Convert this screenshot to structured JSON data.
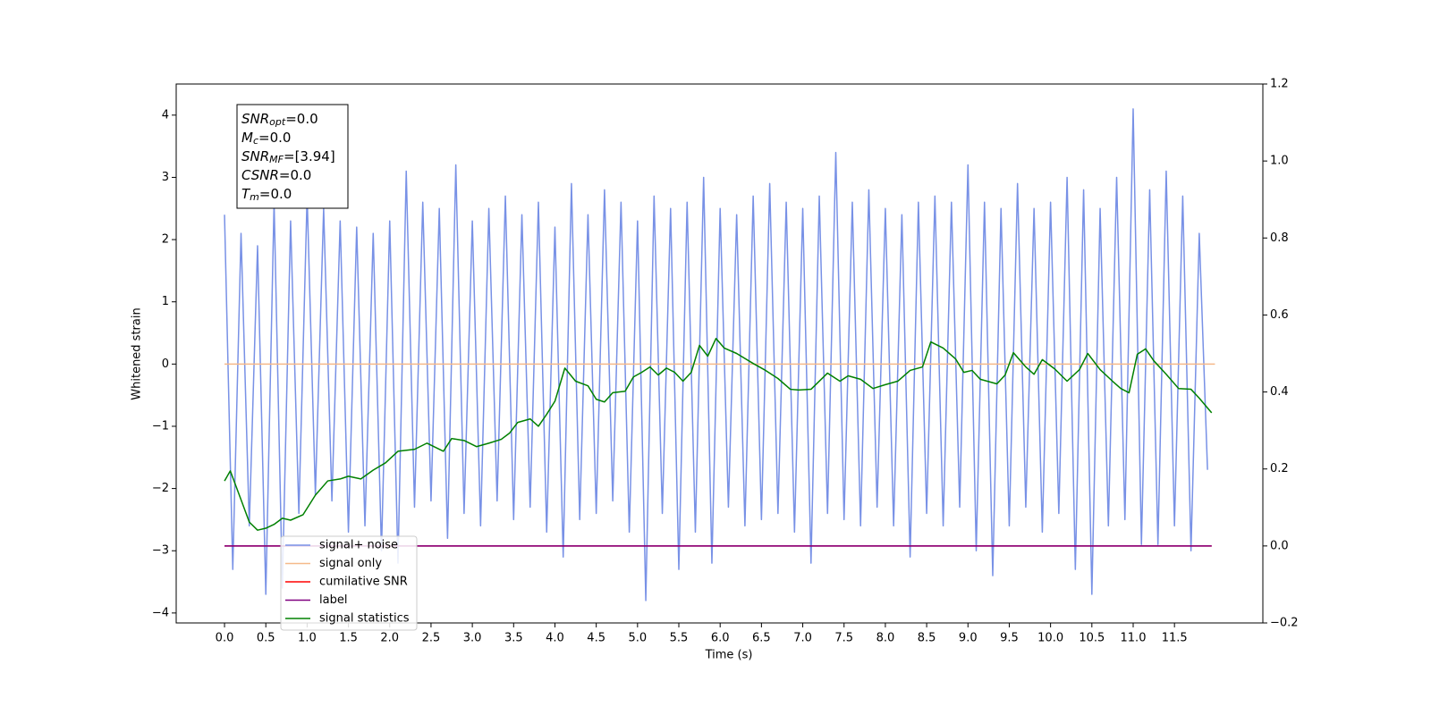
{
  "chart_data": {
    "type": "line",
    "xlabel": "Time (s)",
    "ylabel": "Whitened strain",
    "xlim": [
      -0.585,
      12.57
    ],
    "ylim": [
      -4.16,
      4.5
    ],
    "y2lim": [
      -0.2,
      1.2
    ],
    "xticks": [
      {
        "value": 0,
        "label": "0.0"
      },
      0.5,
      {
        "value": 1,
        "label": "1.0"
      },
      1.5,
      {
        "value": 2,
        "label": "2.0"
      },
      2.5,
      {
        "value": 3,
        "label": "3.0"
      },
      3.5,
      {
        "value": 4,
        "label": "4.0"
      },
      4.5,
      {
        "value": 5,
        "label": "5.0"
      },
      5.5,
      {
        "value": 6,
        "label": "6.0"
      },
      6.5,
      {
        "value": 7,
        "label": "7.0"
      },
      7.5,
      {
        "value": 8,
        "label": "8.0"
      },
      8.5,
      {
        "value": 9,
        "label": "9.0"
      },
      9.5,
      {
        "value": 10,
        "label": "10.0"
      },
      10.5,
      {
        "value": 11,
        "label": "11.0"
      },
      11.5
    ],
    "yticks": [
      {
        "value": -4,
        "label": "−4"
      },
      {
        "value": -3,
        "label": "−3"
      },
      {
        "value": -2,
        "label": "−2"
      },
      {
        "value": -1,
        "label": "−1"
      },
      0,
      1,
      2,
      3,
      4
    ],
    "y2ticks": [
      {
        "value": -0.2,
        "label": "−0.2"
      },
      {
        "value": 0,
        "label": "0.0"
      },
      0.2,
      0.4,
      0.6,
      0.8,
      {
        "value": 1,
        "label": "1.0"
      },
      1.2
    ],
    "annotation": [
      {
        "base": "SNR",
        "sub": "opt",
        "text": "=0.0"
      },
      {
        "base": "M",
        "sub": "c",
        "text": "=0.0"
      },
      {
        "base": "SNR",
        "sub": "MF",
        "text": "=[3.94]"
      },
      {
        "base": "CSNR",
        "text": "=0.0"
      },
      {
        "base": "T",
        "sub": "m",
        "text": "=0.0"
      }
    ],
    "series": [
      {
        "name": "signal+ noise",
        "color": "#7891e6",
        "axis": "y",
        "x": [
          0.0,
          0.1,
          0.2,
          0.3,
          0.4,
          0.5,
          0.6,
          0.7,
          0.8,
          0.9,
          1.0,
          1.1,
          1.2,
          1.3,
          1.4,
          1.5,
          1.6,
          1.7,
          1.8,
          1.9,
          2.0,
          2.1,
          2.2,
          2.3,
          2.4,
          2.5,
          2.6,
          2.7,
          2.8,
          2.9,
          3.0,
          3.1,
          3.2,
          3.3,
          3.4,
          3.5,
          3.6,
          3.7,
          3.8,
          3.9,
          4.0,
          4.1,
          4.2,
          4.3,
          4.4,
          4.5,
          4.6,
          4.7,
          4.8,
          4.9,
          5.0,
          5.1,
          5.2,
          5.3,
          5.4,
          5.5,
          5.6,
          5.7,
          5.8,
          5.9,
          6.0,
          6.1,
          6.2,
          6.3,
          6.4,
          6.5,
          6.6,
          6.7,
          6.8,
          6.9,
          7.0,
          7.1,
          7.2,
          7.3,
          7.4,
          7.5,
          7.6,
          7.7,
          7.8,
          7.9,
          8.0,
          8.1,
          8.2,
          8.3,
          8.4,
          8.5,
          8.6,
          8.7,
          8.8,
          8.9,
          9.0,
          9.1,
          9.2,
          9.3,
          9.4,
          9.5,
          9.6,
          9.7,
          9.8,
          9.9,
          10.0,
          10.1,
          10.2,
          10.3,
          10.4,
          10.5,
          10.6,
          10.7,
          10.8,
          10.9,
          11.0,
          11.1,
          11.2,
          11.3,
          11.4,
          11.5,
          11.6,
          11.7,
          11.8,
          11.9
        ],
        "values": [
          2.4,
          -3.3,
          2.1,
          -2.6,
          1.9,
          -3.7,
          2.6,
          -3.6,
          2.3,
          -2.4,
          2.7,
          -2.1,
          2.5,
          -2.2,
          2.3,
          -2.7,
          2.2,
          -2.6,
          2.1,
          -3.0,
          2.3,
          -3.2,
          3.1,
          -2.3,
          2.6,
          -2.2,
          2.5,
          -2.8,
          3.2,
          -2.4,
          2.3,
          -2.6,
          2.5,
          -2.2,
          2.7,
          -2.5,
          2.4,
          -2.3,
          2.6,
          -2.7,
          2.2,
          -3.1,
          2.9,
          -2.5,
          2.4,
          -2.4,
          2.8,
          -2.2,
          2.6,
          -2.7,
          2.3,
          -3.8,
          2.7,
          -2.4,
          2.5,
          -3.3,
          2.6,
          -2.7,
          3.0,
          -3.2,
          2.5,
          -2.3,
          2.4,
          -2.6,
          2.7,
          -2.5,
          2.9,
          -2.4,
          2.6,
          -2.7,
          2.5,
          -3.2,
          2.7,
          -2.4,
          3.4,
          -2.5,
          2.6,
          -2.6,
          2.8,
          -2.3,
          2.5,
          -2.6,
          2.4,
          -3.1,
          2.6,
          -2.4,
          2.7,
          -2.6,
          2.6,
          -2.3,
          3.2,
          -3.0,
          2.6,
          -3.4,
          2.5,
          -2.6,
          2.9,
          -2.3,
          2.5,
          -2.7,
          2.6,
          -2.4,
          3.0,
          -3.3,
          2.8,
          -3.7,
          2.5,
          -2.6,
          3.0,
          -2.5,
          4.1,
          -2.9,
          2.8,
          -2.9,
          3.1,
          -2.6,
          2.7,
          -3.0,
          2.1,
          -1.7
        ]
      },
      {
        "name": "signal only",
        "color": "#f5b98a",
        "axis": "y",
        "x": [
          0,
          11.99
        ],
        "values": [
          0,
          0
        ]
      },
      {
        "name": "cumilative SNR",
        "color": "#ff0000",
        "axis": "y2",
        "x": [
          0,
          11.95
        ],
        "values": [
          0,
          0
        ]
      },
      {
        "name": "label",
        "color": "#800080",
        "axis": "y2",
        "x": [
          0,
          11.95
        ],
        "values": [
          0,
          0
        ]
      },
      {
        "name": "signal statistics",
        "color": "#008000",
        "axis": "y2",
        "x": [
          0.0,
          0.07,
          0.2,
          0.3,
          0.4,
          0.5,
          0.6,
          0.7,
          0.8,
          0.95,
          1.1,
          1.25,
          1.4,
          1.5,
          1.65,
          1.8,
          1.95,
          2.1,
          2.3,
          2.45,
          2.65,
          2.75,
          2.9,
          3.05,
          3.2,
          3.35,
          3.45,
          3.55,
          3.7,
          3.8,
          3.9,
          4.0,
          4.12,
          4.25,
          4.4,
          4.5,
          4.6,
          4.7,
          4.85,
          4.95,
          5.05,
          5.15,
          5.25,
          5.35,
          5.45,
          5.55,
          5.65,
          5.75,
          5.85,
          5.95,
          6.05,
          6.2,
          6.4,
          6.55,
          6.7,
          6.85,
          6.95,
          7.1,
          7.3,
          7.45,
          7.55,
          7.7,
          7.85,
          8.0,
          8.15,
          8.3,
          8.45,
          8.55,
          8.7,
          8.85,
          8.95,
          9.05,
          9.15,
          9.35,
          9.45,
          9.55,
          9.7,
          9.8,
          9.9,
          10.05,
          10.2,
          10.35,
          10.45,
          10.6,
          10.75,
          10.85,
          10.95,
          11.05,
          11.15,
          11.25,
          11.4,
          11.55,
          11.7,
          11.8,
          11.95
        ],
        "values": [
          0.169,
          0.195,
          0.12,
          0.062,
          0.041,
          0.046,
          0.056,
          0.072,
          0.067,
          0.081,
          0.132,
          0.169,
          0.174,
          0.181,
          0.174,
          0.197,
          0.216,
          0.246,
          0.251,
          0.267,
          0.246,
          0.279,
          0.274,
          0.258,
          0.267,
          0.277,
          0.293,
          0.321,
          0.33,
          0.311,
          0.342,
          0.376,
          0.462,
          0.428,
          0.416,
          0.381,
          0.374,
          0.398,
          0.402,
          0.439,
          0.451,
          0.465,
          0.444,
          0.462,
          0.451,
          0.428,
          0.451,
          0.521,
          0.493,
          0.539,
          0.514,
          0.5,
          0.474,
          0.456,
          0.435,
          0.407,
          0.405,
          0.407,
          0.449,
          0.428,
          0.442,
          0.433,
          0.409,
          0.419,
          0.428,
          0.456,
          0.465,
          0.53,
          0.514,
          0.486,
          0.451,
          0.456,
          0.433,
          0.421,
          0.444,
          0.502,
          0.465,
          0.446,
          0.484,
          0.46,
          0.428,
          0.458,
          0.5,
          0.458,
          0.428,
          0.409,
          0.398,
          0.498,
          0.512,
          0.481,
          0.446,
          0.409,
          0.407,
          0.384,
          0.346
        ]
      }
    ]
  }
}
